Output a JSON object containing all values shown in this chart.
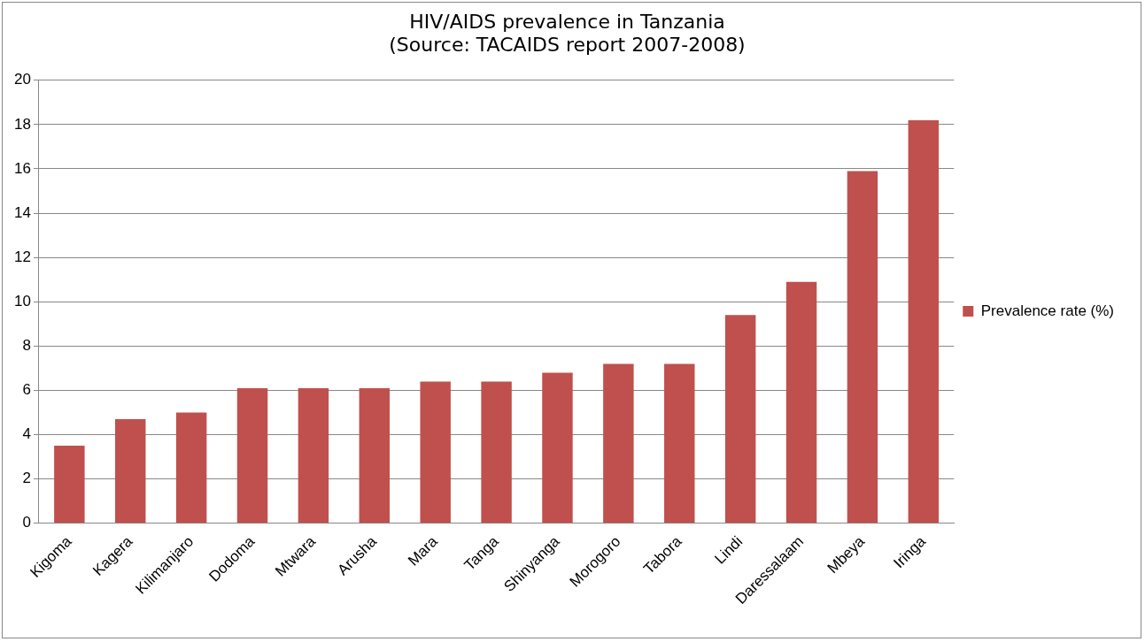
{
  "chart_data": {
    "type": "bar",
    "title": "HIV/AIDS prevalence in Tanzania",
    "subtitle": "(Source: TACAIDS report 2007-2008)",
    "categories": [
      "Kigoma",
      "Kagera",
      "Kilimanjaro",
      "Dodoma",
      "Mtwara",
      "Arusha",
      "Mara",
      "Tanga",
      "Shinyanga",
      "Morogoro",
      "Tabora",
      "Lindi",
      "Daressalaam",
      "Mbeya",
      "Iringa"
    ],
    "series": [
      {
        "name": "Prevalence rate (%)",
        "color": "#c0504d",
        "values": [
          3.5,
          4.7,
          5.0,
          6.1,
          6.1,
          6.1,
          6.4,
          6.4,
          6.8,
          7.2,
          7.2,
          9.4,
          10.9,
          15.9,
          18.2
        ]
      }
    ],
    "ylim": [
      0,
      20
    ],
    "yticks": [
      0,
      2,
      4,
      6,
      8,
      10,
      12,
      14,
      16,
      18,
      20
    ],
    "grid": "y",
    "legend": "right"
  }
}
